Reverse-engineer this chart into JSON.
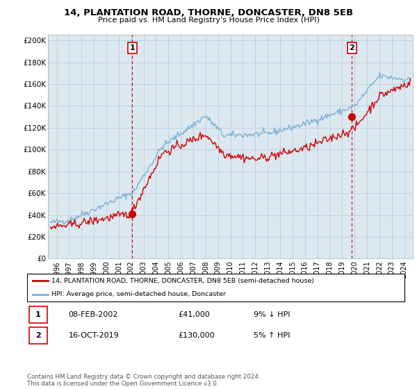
{
  "title": "14, PLANTATION ROAD, THORNE, DONCASTER, DN8 5EB",
  "subtitle": "Price paid vs. HM Land Registry's House Price Index (HPI)",
  "ylabel_ticks": [
    "£0",
    "£20K",
    "£40K",
    "£60K",
    "£80K",
    "£100K",
    "£120K",
    "£140K",
    "£160K",
    "£180K",
    "£200K"
  ],
  "ytick_values": [
    0,
    20000,
    40000,
    60000,
    80000,
    100000,
    120000,
    140000,
    160000,
    180000,
    200000
  ],
  "ylim": [
    0,
    205000
  ],
  "xlim_start": 1995.3,
  "xlim_end": 2024.7,
  "property_color": "#cc0000",
  "hpi_color": "#7ab0d4",
  "chart_bg_color": "#dce8f0",
  "sale1_x": 2002.1,
  "sale1_y": 41000,
  "sale2_x": 2019.79,
  "sale2_y": 130000,
  "sale1_label": "1",
  "sale2_label": "2",
  "legend1_text": "14, PLANTATION ROAD, THORNE, DONCASTER, DN8 5EB (semi-detached house)",
  "legend2_text": "HPI: Average price, semi-detached house, Doncaster",
  "table_row1_num": "1",
  "table_row1_date": "08-FEB-2002",
  "table_row1_price": "£41,000",
  "table_row1_hpi": "9% ↓ HPI",
  "table_row2_num": "2",
  "table_row2_date": "16-OCT-2019",
  "table_row2_price": "£130,000",
  "table_row2_hpi": "5% ↑ HPI",
  "footnote": "Contains HM Land Registry data © Crown copyright and database right 2024.\nThis data is licensed under the Open Government Licence v3.0.",
  "background_color": "#ffffff",
  "grid_color": "#b8cdd8",
  "dashed_line_color": "#cc0000"
}
